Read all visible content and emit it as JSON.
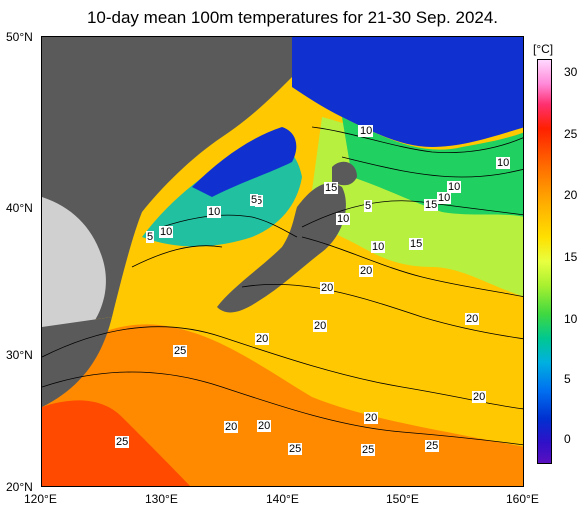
{
  "title": "10-day mean 100m temperatures for 21-30 Sep. 2024.",
  "lat_labels": [
    "50°N",
    "40°N",
    "30°N",
    "20°N"
  ],
  "lon_labels": [
    "120°E",
    "130°E",
    "140°E",
    "150°E",
    "160°E"
  ],
  "colorbar": {
    "unit": "[°C]",
    "ticks": [
      "30",
      "25",
      "20",
      "15",
      "10",
      "5",
      "0"
    ]
  },
  "contour_labels": [
    "10",
    "5",
    "10",
    "10",
    "5",
    "5",
    "10",
    "15",
    "10",
    "5",
    "10",
    "10",
    "10",
    "15",
    "10",
    "15",
    "20",
    "20",
    "20",
    "20",
    "20",
    "20",
    "25",
    "20",
    "20",
    "20",
    "25",
    "25",
    "25",
    "25"
  ],
  "colors": {
    "land": "#5a5a5a",
    "land_light": "#d0d0d0",
    "cold": "#1030d0",
    "mid": "#20d060",
    "warm": "#ffc800",
    "hot": "#ff4a00"
  }
}
